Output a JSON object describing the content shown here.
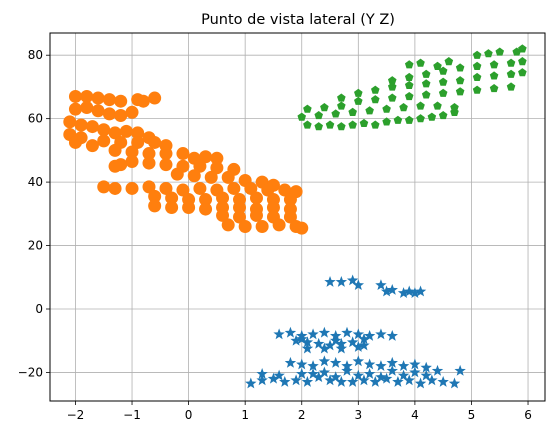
{
  "chart_data": {
    "type": "scatter",
    "title": "Punto de vista lateral (Y Z)",
    "xlabel": "",
    "ylabel": "",
    "xlim": [
      -2.45,
      6.3
    ],
    "ylim": [
      -29,
      87
    ],
    "x_ticks": [
      -2,
      -1,
      0,
      1,
      2,
      3,
      4,
      5,
      6
    ],
    "x_tick_labels": [
      "−2",
      "−1",
      "0",
      "1",
      "2",
      "3",
      "4",
      "5",
      "6"
    ],
    "y_ticks": [
      -20,
      0,
      20,
      40,
      60,
      80
    ],
    "y_tick_labels": [
      "−20",
      "0",
      "20",
      "40",
      "60",
      "80"
    ],
    "grid": true,
    "legend": "none",
    "series": [
      {
        "marker": "star",
        "color": "#1f77b4",
        "points": [
          [
            1.1,
            -23.5
          ],
          [
            1.3,
            -22.5
          ],
          [
            1.5,
            -22
          ],
          [
            1.7,
            -23
          ],
          [
            1.9,
            -22.5
          ],
          [
            2.1,
            -23
          ],
          [
            2.3,
            -21.5
          ],
          [
            2.5,
            -22.5
          ],
          [
            2.7,
            -23
          ],
          [
            2.9,
            -23
          ],
          [
            3.1,
            -22.5
          ],
          [
            3.3,
            -23
          ],
          [
            3.5,
            -22
          ],
          [
            3.7,
            -23
          ],
          [
            3.9,
            -22.5
          ],
          [
            4.1,
            -23.5
          ],
          [
            4.3,
            -22.5
          ],
          [
            4.5,
            -23
          ],
          [
            4.7,
            -23.5
          ],
          [
            1.3,
            -20.5
          ],
          [
            1.6,
            -21
          ],
          [
            2.0,
            -20.5
          ],
          [
            2.4,
            -20
          ],
          [
            2.8,
            -19.5
          ],
          [
            3.2,
            -20.5
          ],
          [
            3.6,
            -19.5
          ],
          [
            4.0,
            -20
          ],
          [
            4.4,
            -19.5
          ],
          [
            4.8,
            -19.5
          ],
          [
            1.8,
            -17
          ],
          [
            2.0,
            -17.5
          ],
          [
            2.2,
            -18
          ],
          [
            2.4,
            -16.5
          ],
          [
            2.6,
            -17
          ],
          [
            2.8,
            -18
          ],
          [
            3.0,
            -16.5
          ],
          [
            3.2,
            -17.5
          ],
          [
            3.4,
            -18
          ],
          [
            3.6,
            -17
          ],
          [
            3.8,
            -18
          ],
          [
            4.0,
            -17.5
          ],
          [
            4.2,
            -18.5
          ],
          [
            2.2,
            -20.5
          ],
          [
            2.6,
            -21.5
          ],
          [
            3.0,
            -21
          ],
          [
            3.4,
            -21.5
          ],
          [
            3.8,
            -21
          ],
          [
            4.2,
            -21
          ],
          [
            1.6,
            -8
          ],
          [
            1.8,
            -7.5
          ],
          [
            2.0,
            -8.5
          ],
          [
            2.2,
            -8
          ],
          [
            2.4,
            -7.5
          ],
          [
            2.6,
            -8.5
          ],
          [
            2.8,
            -7.5
          ],
          [
            3.0,
            -8
          ],
          [
            3.2,
            -8.5
          ],
          [
            3.4,
            -8
          ],
          [
            3.6,
            -8.5
          ],
          [
            1.9,
            -10
          ],
          [
            2.1,
            -10.5
          ],
          [
            2.3,
            -11
          ],
          [
            2.5,
            -11.5
          ],
          [
            2.7,
            -11
          ],
          [
            2.9,
            -10.5
          ],
          [
            3.1,
            -11.5
          ],
          [
            2.1,
            -12.5
          ],
          [
            2.4,
            -12.5
          ],
          [
            2.7,
            -12.5
          ],
          [
            3.0,
            -12
          ],
          [
            2.0,
            -9.5
          ],
          [
            2.6,
            -10
          ],
          [
            3.1,
            -9.5
          ],
          [
            2.5,
            8.5
          ],
          [
            2.7,
            8.5
          ],
          [
            2.9,
            9
          ],
          [
            3.0,
            7.5
          ],
          [
            3.4,
            7.5
          ],
          [
            3.5,
            5.5
          ],
          [
            3.6,
            6
          ],
          [
            3.8,
            5
          ],
          [
            3.9,
            5.5
          ],
          [
            4.0,
            5
          ],
          [
            4.1,
            5.5
          ]
        ]
      },
      {
        "marker": "circle",
        "color": "#ff7f0e",
        "points": [
          [
            -2.0,
            67
          ],
          [
            -1.8,
            67
          ],
          [
            -1.6,
            66.5
          ],
          [
            -1.4,
            66
          ],
          [
            -1.2,
            65.5
          ],
          [
            -0.9,
            66
          ],
          [
            -0.8,
            65.5
          ],
          [
            -0.6,
            66.5
          ],
          [
            -2.0,
            63
          ],
          [
            -1.8,
            63.5
          ],
          [
            -1.6,
            62.5
          ],
          [
            -1.4,
            61.5
          ],
          [
            -1.2,
            61
          ],
          [
            -1.0,
            62
          ],
          [
            -2.1,
            59
          ],
          [
            -1.9,
            58
          ],
          [
            -1.7,
            57.5
          ],
          [
            -1.5,
            56.5
          ],
          [
            -1.3,
            55.5
          ],
          [
            -1.1,
            56
          ],
          [
            -0.9,
            55.5
          ],
          [
            -0.7,
            54
          ],
          [
            -2.1,
            55
          ],
          [
            -1.9,
            54
          ],
          [
            -1.5,
            53
          ],
          [
            -1.2,
            52.5
          ],
          [
            -0.9,
            52.5
          ],
          [
            -0.6,
            52.5
          ],
          [
            -0.4,
            51.5
          ],
          [
            -2.0,
            52.5
          ],
          [
            -1.7,
            51.5
          ],
          [
            -1.3,
            50
          ],
          [
            -1.0,
            49.5
          ],
          [
            -0.7,
            49
          ],
          [
            -0.4,
            49
          ],
          [
            -0.1,
            49
          ],
          [
            0.1,
            47.5
          ],
          [
            0.3,
            48
          ],
          [
            0.5,
            47.5
          ],
          [
            -1.0,
            46.5
          ],
          [
            -0.7,
            46
          ],
          [
            -0.4,
            45.5
          ],
          [
            -0.1,
            45
          ],
          [
            0.2,
            45
          ],
          [
            0.5,
            44.5
          ],
          [
            0.8,
            44
          ],
          [
            -1.2,
            45.5
          ],
          [
            -1.3,
            45
          ],
          [
            -0.2,
            42.5
          ],
          [
            0.1,
            42
          ],
          [
            0.4,
            41.5
          ],
          [
            0.7,
            41.5
          ],
          [
            1.0,
            40.5
          ],
          [
            1.3,
            40
          ],
          [
            1.5,
            39
          ],
          [
            -1.5,
            38.5
          ],
          [
            -1.3,
            38
          ],
          [
            -1.0,
            38
          ],
          [
            -0.7,
            38.5
          ],
          [
            -0.4,
            38
          ],
          [
            -0.1,
            37.5
          ],
          [
            0.2,
            38
          ],
          [
            0.5,
            37.5
          ],
          [
            0.8,
            38
          ],
          [
            1.1,
            38
          ],
          [
            1.4,
            37.5
          ],
          [
            1.7,
            37.5
          ],
          [
            1.9,
            37
          ],
          [
            -0.6,
            35.5
          ],
          [
            -0.3,
            35
          ],
          [
            0.0,
            34.5
          ],
          [
            0.3,
            34.5
          ],
          [
            0.6,
            35
          ],
          [
            0.9,
            34.5
          ],
          [
            1.2,
            35
          ],
          [
            1.5,
            34.5
          ],
          [
            1.8,
            34.5
          ],
          [
            -0.6,
            32.5
          ],
          [
            -0.3,
            32
          ],
          [
            0.0,
            32
          ],
          [
            0.3,
            31.5
          ],
          [
            0.6,
            32
          ],
          [
            0.9,
            32
          ],
          [
            1.2,
            31.5
          ],
          [
            1.5,
            32
          ],
          [
            1.8,
            31.5
          ],
          [
            0.6,
            29.5
          ],
          [
            0.9,
            29
          ],
          [
            1.2,
            29.5
          ],
          [
            1.5,
            29
          ],
          [
            1.8,
            29
          ],
          [
            0.7,
            26.5
          ],
          [
            1.0,
            26
          ],
          [
            1.3,
            26
          ],
          [
            1.6,
            26.5
          ],
          [
            1.9,
            26
          ],
          [
            2.0,
            25.5
          ]
        ]
      },
      {
        "marker": "pentagon",
        "color": "#2ca02c",
        "points": [
          [
            2.1,
            58
          ],
          [
            2.3,
            57.5
          ],
          [
            2.5,
            58
          ],
          [
            2.7,
            57.5
          ],
          [
            2.9,
            58
          ],
          [
            3.1,
            58.5
          ],
          [
            3.3,
            58
          ],
          [
            3.5,
            59
          ],
          [
            3.7,
            59.5
          ],
          [
            3.9,
            59.5
          ],
          [
            4.1,
            60
          ],
          [
            4.3,
            60.5
          ],
          [
            4.5,
            61
          ],
          [
            4.7,
            62
          ],
          [
            2.0,
            60.5
          ],
          [
            2.3,
            61
          ],
          [
            2.6,
            61.5
          ],
          [
            2.9,
            62
          ],
          [
            3.2,
            62.5
          ],
          [
            3.5,
            63
          ],
          [
            3.8,
            63.5
          ],
          [
            4.1,
            64
          ],
          [
            4.4,
            64
          ],
          [
            4.7,
            63.5
          ],
          [
            2.1,
            63
          ],
          [
            2.4,
            63.5
          ],
          [
            2.7,
            64
          ],
          [
            3.0,
            65.5
          ],
          [
            3.3,
            66
          ],
          [
            3.6,
            66.5
          ],
          [
            3.9,
            67
          ],
          [
            4.2,
            67.5
          ],
          [
            4.5,
            68
          ],
          [
            4.8,
            68.5
          ],
          [
            5.1,
            69
          ],
          [
            5.4,
            69.5
          ],
          [
            5.7,
            70
          ],
          [
            2.7,
            66.5
          ],
          [
            3.0,
            68
          ],
          [
            3.3,
            69
          ],
          [
            3.6,
            70
          ],
          [
            3.9,
            70.5
          ],
          [
            4.2,
            71
          ],
          [
            4.5,
            71.5
          ],
          [
            4.8,
            72
          ],
          [
            5.1,
            73
          ],
          [
            5.4,
            73.5
          ],
          [
            5.7,
            74
          ],
          [
            5.9,
            74.5
          ],
          [
            3.6,
            72
          ],
          [
            3.9,
            73
          ],
          [
            4.2,
            74
          ],
          [
            4.5,
            75
          ],
          [
            4.8,
            76
          ],
          [
            5.1,
            76.5
          ],
          [
            5.4,
            77
          ],
          [
            5.7,
            77.5
          ],
          [
            5.9,
            78
          ],
          [
            3.9,
            77
          ],
          [
            4.1,
            77.5
          ],
          [
            4.4,
            76.5
          ],
          [
            4.6,
            78
          ],
          [
            5.1,
            80
          ],
          [
            5.3,
            80.5
          ],
          [
            5.5,
            81
          ],
          [
            5.8,
            81
          ],
          [
            5.9,
            82
          ]
        ]
      }
    ]
  }
}
